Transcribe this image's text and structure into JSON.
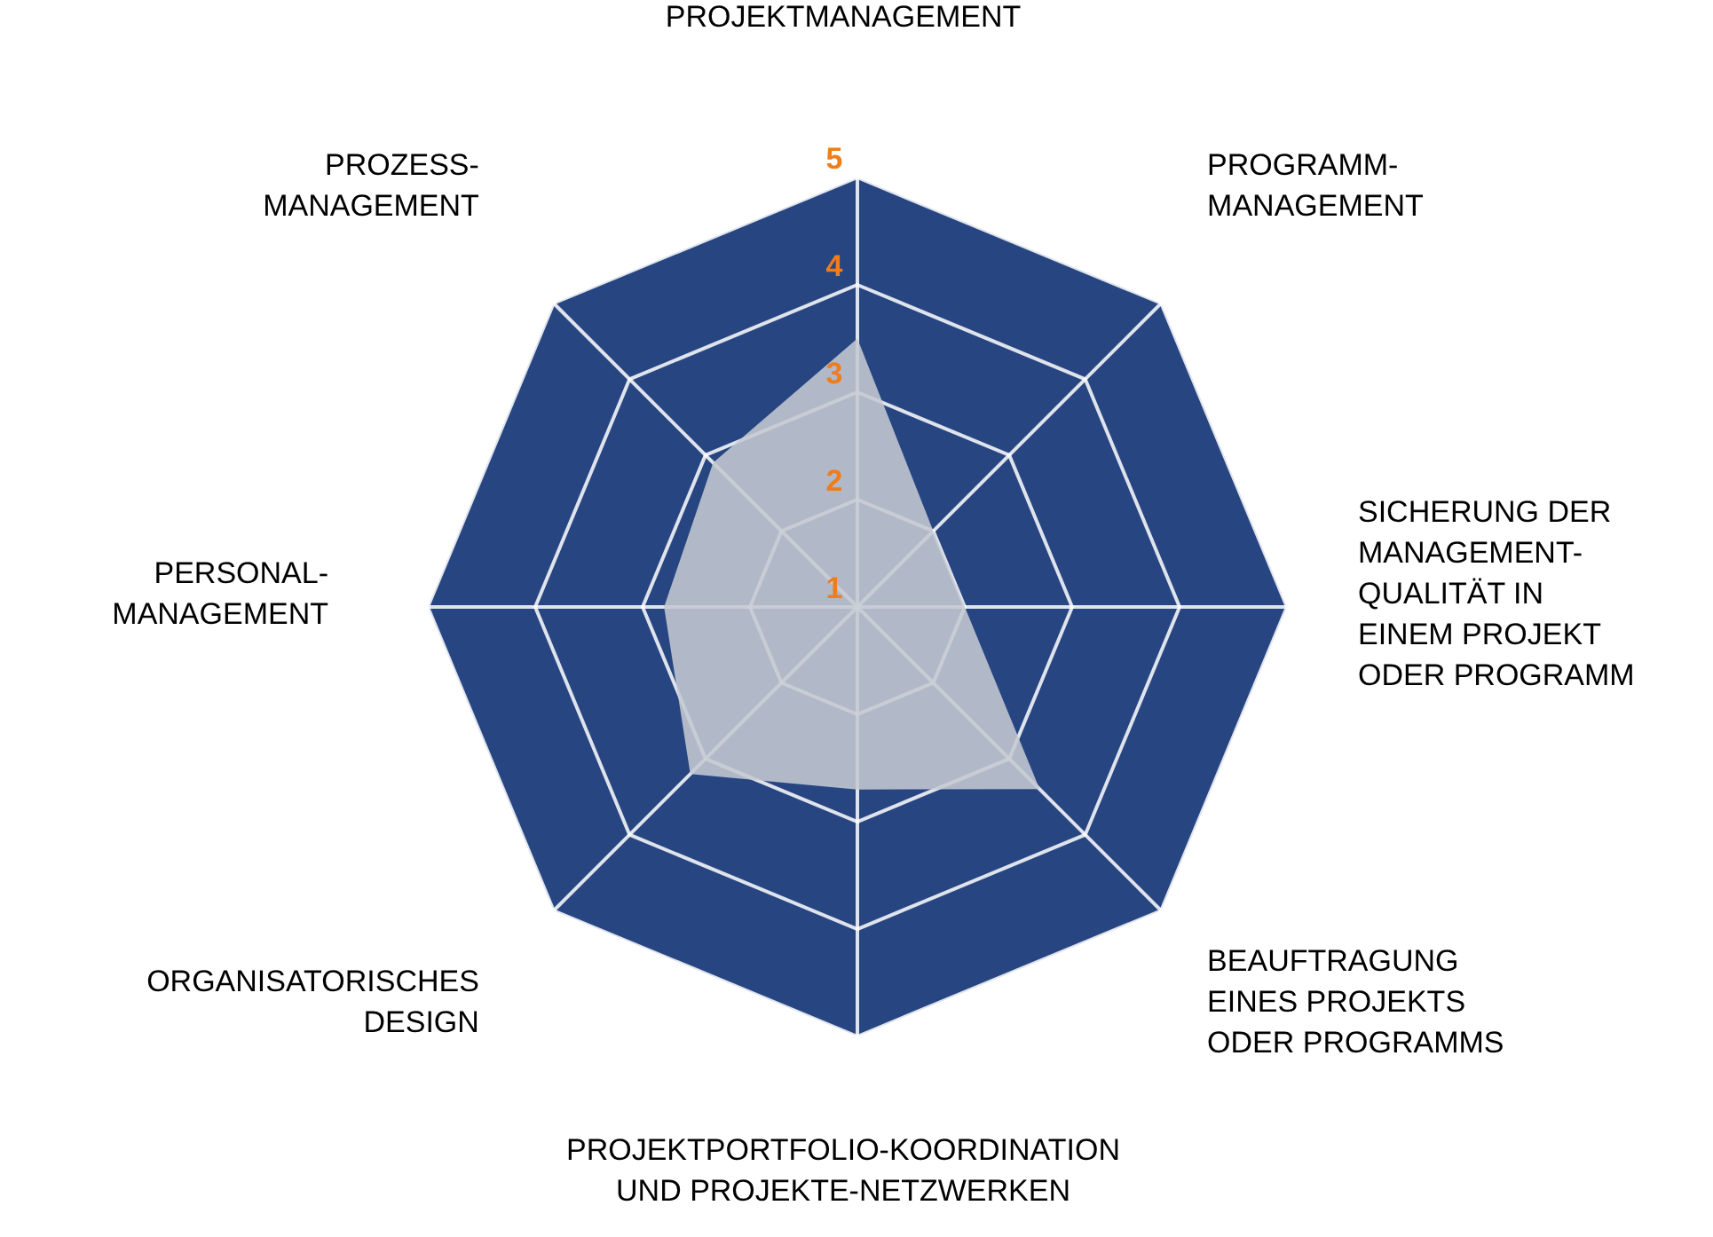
{
  "chart_data": {
    "type": "radar",
    "categories": [
      "PROJEKTMANAGEMENT",
      "PROGRAMM-\nMANAGEMENT",
      "SICHERUNG DER\nMANAGEMENT-\nQUALITÄT IN\nEINEM PROJEKT\nODER PROGRAMM",
      "BEAUFTRAGUNG\nEINES PROJEKTS\nODER PROGRAMMS",
      "PROJEKTPORTFOLIO-KOORDINATION\nUND PROJEKTE-NETZWERKEN",
      "ORGANISATORISCHES\nDESIGN",
      "PERSONAL-\nMANAGEMENT",
      "PROZESS-\nMANAGEMENT"
    ],
    "series": [
      {
        "color": "#c5cad2",
        "values": [
          3.5,
          2,
          2,
          3.4,
          2.7,
          3.2,
          2.8,
          2.9
        ]
      }
    ],
    "ylim": [
      1,
      5
    ],
    "yticks": [
      1,
      2,
      3,
      4,
      5
    ],
    "grid": true
  }
}
